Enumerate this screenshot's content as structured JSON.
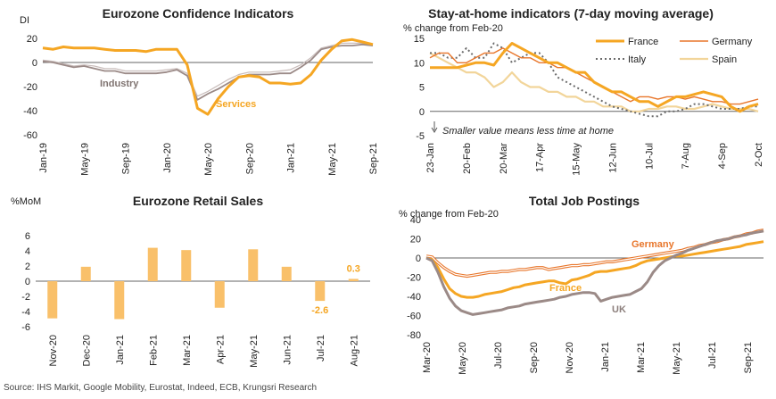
{
  "source": "Source: IHS Markit, Google Mobility, Eurostat, Indeed, ECB, Krungsri Research",
  "colors": {
    "orange": "#f5a623",
    "lightOrange": "#f9c06a",
    "grayBrown": "#9b8a87",
    "darkOrange": "#e8762b",
    "dotGray": "#6b6b6b",
    "spain": "#f2d59a"
  },
  "chart_data": [
    {
      "type": "line",
      "title": "Eurozone Confidence Indicators",
      "ylabel": "DI",
      "ylim": [
        -60,
        20
      ],
      "yticks": [
        20,
        0,
        -20,
        -40,
        -60
      ],
      "xticklabels": [
        "Jan-19",
        "May-19",
        "Sep-19",
        "Jan-20",
        "May-20",
        "Sep-20",
        "Jan-21",
        "May-21",
        "Sep-21"
      ],
      "x": [
        "Jan-19",
        "Feb-19",
        "Mar-19",
        "Apr-19",
        "May-19",
        "Jun-19",
        "Jul-19",
        "Aug-19",
        "Sep-19",
        "Oct-19",
        "Nov-19",
        "Dec-19",
        "Jan-20",
        "Feb-20",
        "Mar-20",
        "Apr-20",
        "May-20",
        "Jun-20",
        "Jul-20",
        "Aug-20",
        "Sep-20",
        "Oct-20",
        "Nov-20",
        "Dec-20",
        "Jan-21",
        "Feb-21",
        "Mar-21",
        "Apr-21",
        "May-21",
        "Jun-21",
        "Jul-21",
        "Aug-21",
        "Sep-21"
      ],
      "series": [
        {
          "name": "Services",
          "values": [
            12,
            11,
            13,
            12,
            12,
            12,
            11,
            10,
            10,
            10,
            9,
            11,
            11,
            11,
            -2,
            -38,
            -43,
            -30,
            -20,
            -12,
            -11,
            -12,
            -17,
            -17,
            -18,
            -17,
            -10,
            2,
            11,
            18,
            19,
            17,
            15
          ]
        },
        {
          "name": "Industry",
          "values": [
            1,
            0,
            -2,
            -4,
            -3,
            -5,
            -7,
            -7,
            -9,
            -9,
            -9,
            -9,
            -8,
            -6,
            -11,
            -31,
            -26,
            -22,
            -17,
            -12,
            -10,
            -10,
            -10,
            -9,
            -9,
            -4,
            2,
            11,
            13,
            14,
            14,
            15,
            14
          ]
        },
        {
          "name": "",
          "values": [
            2,
            1,
            -1,
            -3,
            -2,
            -3,
            -5,
            -5,
            -7,
            -7,
            -7,
            -7,
            -6,
            -5,
            -9,
            -28,
            -24,
            -19,
            -14,
            -10,
            -8,
            -8,
            -8,
            -7,
            -6,
            -2,
            4,
            12,
            14,
            16,
            16,
            16,
            15
          ]
        }
      ]
    },
    {
      "type": "line",
      "title": "Stay-at-home indicators (7-day moving average)",
      "ylabel": "% change from Feb-20",
      "annotation": "Smaller value means less time at home",
      "ylim": [
        -5,
        15
      ],
      "yticks": [
        15,
        10,
        5,
        0,
        -5
      ],
      "xticklabels": [
        "23-Jan",
        "20-Feb",
        "20-Mar",
        "17-Apr",
        "15-May",
        "12-Jun",
        "10-Jul",
        "7-Aug",
        "4-Sep",
        "2-Oct"
      ],
      "x": [
        0,
        1,
        2,
        3,
        4,
        5,
        6,
        7,
        8,
        9,
        10,
        11,
        12,
        13,
        14,
        15,
        16,
        17,
        18,
        19,
        20,
        21,
        22,
        23,
        24,
        25,
        26,
        27,
        28,
        29,
        30,
        31,
        32,
        33,
        34,
        35,
        36
      ],
      "series": [
        {
          "name": "France",
          "values": [
            9,
            9,
            9,
            9,
            9.5,
            10,
            10,
            9.5,
            12,
            14,
            13,
            12,
            11,
            10,
            10,
            9,
            8,
            8,
            6,
            5,
            4,
            4,
            3,
            2,
            2,
            1,
            2,
            3,
            3,
            3.5,
            4,
            3.5,
            3,
            1,
            0,
            1,
            1.5
          ]
        },
        {
          "name": "Germany",
          "values": [
            11,
            12,
            12,
            10,
            10,
            11,
            12,
            12,
            13,
            12,
            11,
            11,
            10,
            10,
            9,
            9,
            8,
            7,
            6,
            5,
            4,
            3,
            2,
            3,
            3,
            2.5,
            3,
            3,
            2.5,
            3,
            2.5,
            2,
            2,
            1.5,
            1.5,
            2,
            2.5
          ]
        },
        {
          "name": "Italy",
          "values": [
            12,
            12,
            11,
            11,
            13,
            11,
            11,
            14,
            13,
            10,
            11,
            12,
            12,
            10,
            7,
            6,
            5,
            4,
            3,
            2,
            1,
            0.5,
            0,
            -0.5,
            -1,
            -1,
            0,
            0,
            0.5,
            1.5,
            1.5,
            1,
            0.5,
            0.5,
            0.5,
            1,
            1
          ]
        },
        {
          "name": "Spain",
          "values": [
            12,
            11,
            10,
            9,
            8,
            8,
            7,
            5,
            6,
            8,
            6,
            5,
            5,
            4,
            4,
            3,
            3,
            2,
            2,
            1,
            1,
            1,
            0,
            0,
            0.5,
            0.5,
            1,
            1,
            0.5,
            0.5,
            1,
            1.5,
            1,
            0.5,
            0.5,
            0.5,
            0
          ]
        }
      ]
    },
    {
      "type": "bar",
      "title": "Eurozone Retail Sales",
      "ylabel": "%MoM",
      "ylim": [
        -6,
        6
      ],
      "yticks": [
        6,
        4,
        2,
        0,
        -2,
        -4,
        -6
      ],
      "categories": [
        "Nov-20",
        "Dec-20",
        "Jan-21",
        "Feb-21",
        "Mar-21",
        "Apr-21",
        "May-21",
        "Jun-21",
        "Jul-21",
        "Aug-21"
      ],
      "values": [
        -4.9,
        1.9,
        -5.0,
        4.4,
        4.1,
        -3.5,
        4.2,
        1.9,
        -2.6,
        0.3
      ],
      "data_labels": {
        "8": "-2.6",
        "9": "0.3"
      }
    },
    {
      "type": "line",
      "title": "Total Job Postings",
      "ylabel": "% change from Feb-20",
      "ylim": [
        -80,
        40
      ],
      "yticks": [
        40,
        20,
        0,
        -20,
        -40,
        -60,
        -80
      ],
      "xticklabels": [
        "Mar-20",
        "May-20",
        "Jul-20",
        "Sep-20",
        "Nov-20",
        "Jan-21",
        "Mar-21",
        "May-21",
        "Jul-21",
        "Sep-21"
      ],
      "x": [
        0,
        1,
        2,
        3,
        4,
        5,
        6,
        7,
        8,
        9,
        10,
        11,
        12,
        13,
        14,
        15,
        16,
        17,
        18,
        19,
        20,
        21,
        22,
        23,
        24,
        25,
        26,
        27,
        28,
        29,
        30,
        31,
        32,
        33,
        34,
        35,
        36,
        37,
        38,
        39,
        40,
        41,
        42,
        43,
        44,
        45,
        46,
        47,
        48,
        49,
        50,
        51,
        52,
        53,
        54,
        55,
        56,
        57,
        58
      ],
      "series": [
        {
          "name": "Germany",
          "values": [
            2,
            1,
            -5,
            -10,
            -14,
            -17,
            -18,
            -19,
            -18,
            -17,
            -16,
            -15,
            -15,
            -14,
            -14,
            -13,
            -12,
            -12,
            -11,
            -10,
            -10,
            -12,
            -11,
            -10,
            -9,
            -8,
            -8,
            -7,
            -7,
            -6,
            -5,
            -4,
            -4,
            -3,
            -2,
            -1,
            0,
            1,
            2,
            3,
            4,
            5,
            6,
            7,
            8,
            10,
            11,
            13,
            14,
            16,
            17,
            19,
            20,
            22,
            23,
            25,
            26,
            28,
            29
          ]
        },
        {
          "name": "France",
          "values": [
            0,
            -2,
            -10,
            -22,
            -32,
            -37,
            -40,
            -41,
            -41,
            -40,
            -38,
            -37,
            -36,
            -35,
            -33,
            -31,
            -30,
            -28,
            -27,
            -26,
            -25,
            -24,
            -24,
            -26,
            -27,
            -23,
            -22,
            -20,
            -18,
            -15,
            -14,
            -14,
            -13,
            -12,
            -11,
            -10,
            -8,
            -5,
            -3,
            -2,
            -1,
            0,
            1,
            2,
            2,
            3,
            4,
            5,
            6,
            7,
            8,
            9,
            10,
            11,
            12,
            14,
            15,
            16,
            17
          ]
        },
        {
          "name": "UK",
          "values": [
            0,
            -3,
            -15,
            -30,
            -42,
            -50,
            -55,
            -57,
            -59,
            -58,
            -57,
            -56,
            -55,
            -54,
            -52,
            -51,
            -50,
            -48,
            -47,
            -46,
            -45,
            -44,
            -43,
            -41,
            -40,
            -38,
            -37,
            -36,
            -36,
            -37,
            -45,
            -43,
            -41,
            -40,
            -39,
            -38,
            -35,
            -32,
            -25,
            -15,
            -8,
            -3,
            0,
            3,
            5,
            8,
            10,
            12,
            14,
            16,
            18,
            19,
            20,
            22,
            23,
            24,
            26,
            27,
            28
          ]
        }
      ]
    }
  ]
}
